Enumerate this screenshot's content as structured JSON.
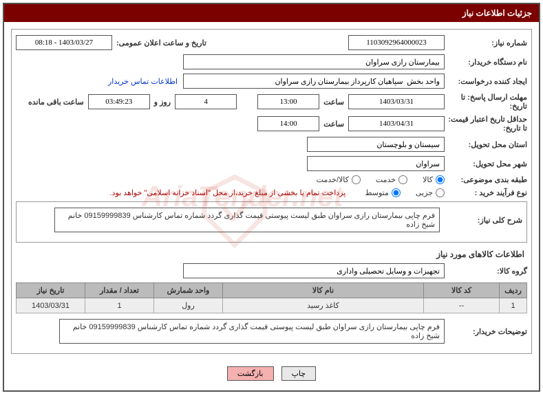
{
  "header": {
    "title": "جزئیات اطلاعات نیاز"
  },
  "fields": {
    "needNumber_label": "شماره نیاز:",
    "needNumber": "1103092964000023",
    "publicAnnounce_label": "تاریخ و ساعت اعلان عمومی:",
    "publicAnnounce": "1403/03/27 - 08:18",
    "buyerOrg_label": "نام دستگاه خریدار:",
    "buyerOrg": "بیمارستان رازی سراوان",
    "requester_label": "ایجاد کننده درخواست:",
    "requester": "واحد بخش  سپاهیان کارپرداز بیمارستان رازی سراوان",
    "contactLink": "اطلاعات تماس خریدار",
    "replyDeadline_label": "مهلت ارسال پاسخ: تا تاریخ:",
    "replyDeadlineDate": "1403/03/31",
    "timeLabel": "ساعت",
    "replyDeadlineTime": "13:00",
    "daysLeft": "4",
    "daysAnd": "روز و",
    "remainTime": "03:49:23",
    "remainLabel": "ساعت باقی مانده",
    "priceValidity_label": "حداقل تاریخ اعتبار قیمت: تا تاریخ:",
    "priceValidityDate": "1403/04/31",
    "priceValidityTime": "14:00",
    "deliveryProvince_label": "استان محل تحویل:",
    "deliveryProvince": "سیستان و بلوچستان",
    "deliveryCity_label": "شهر محل تحویل:",
    "deliveryCity": "سراوان",
    "category_label": "طبقه بندی موضوعی:",
    "cat_goods": "کالا",
    "cat_service": "خدمت",
    "cat_goodsservice": "کالا/خدمت",
    "buyProcess_label": "نوع فرآیند خرید :",
    "proc_partial": "جزیی",
    "proc_medium": "متوسط",
    "buyNote": "پرداخت تمام یا بخشی از مبلغ خرید،از محل \"اسناد خزانه اسلامی\" خواهد بود.",
    "generalDesc_label": "شرح کلی نیاز:",
    "generalDesc": "فرم چاپی  بیمارستان رازی  سراوان طبق لیست پیوستی قیمت گذاری گردد شماره تماس کارشناس 09159999839 خانم شیخ زاده",
    "itemsSection": "اطلاعات کالاهای مورد نیاز",
    "goodsGroup_label": "گروه کالا:",
    "goodsGroup": "تجهیزات و وسایل تحصیلی واداری",
    "buyerComments_label": "توضیحات خریدار:",
    "buyerComments": "فرم چاپی  بیمارستان رازی  سراوان طبق لیست پیوستی قیمت گذاری گردد شماره تماس کارشناس 09159999839 خانم شیخ زاده"
  },
  "table": {
    "headers": {
      "row": "ردیف",
      "code": "کد کالا",
      "name": "نام کالا",
      "unit": "واحد شمارش",
      "qty": "تعداد / مقدار",
      "needDate": "تاریخ نیاز"
    },
    "rows": [
      {
        "row": "1",
        "code": "--",
        "name": "کاغذ رسید",
        "unit": "رول",
        "qty": "1",
        "needDate": "1403/03/31"
      }
    ]
  },
  "buttons": {
    "print": "چاپ",
    "back": "بازگشت"
  }
}
